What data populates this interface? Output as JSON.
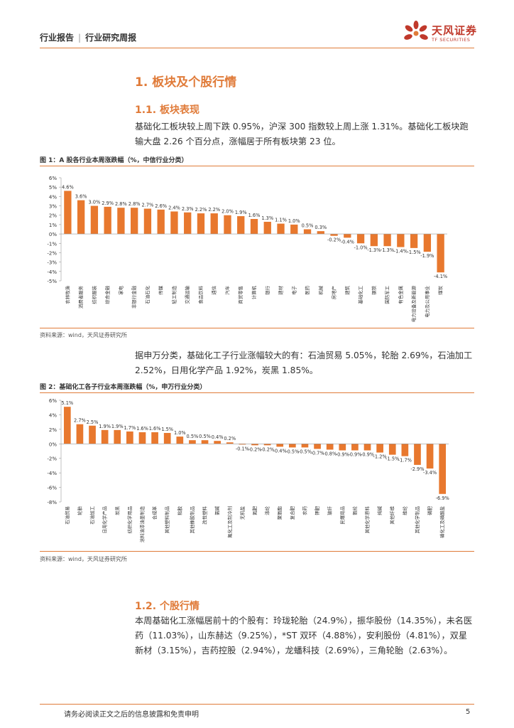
{
  "header": {
    "category": "行业报告",
    "subcategory": "行业研究周报"
  },
  "logo": {
    "name": "天风证券",
    "english": "TF SECURITIES"
  },
  "section1": {
    "title": "1. 板块及个股行情"
  },
  "section11": {
    "title": "1.1. 板块表现",
    "para": "基础化工板块较上周下跌 0.95%，沪深 300 指数较上周上涨 1.31%。基础化工板块跑输大盘 2.26 个百分点，涨幅居于所有板块第 23 位。"
  },
  "figure1": {
    "title": "图 1：A 股各行业本周涨跌幅（%，中信行业分类）",
    "source": "资料来源：wind，天风证券研究所"
  },
  "para2": "据申万分类，基础化工子行业涨幅较大的有：石油贸易 5.05%，轮胎 2.69%，石油加工 2.52%，日用化学产品 1.92%，炭黑 1.85%。",
  "figure2": {
    "title": "图 2：基础化工各子行业本周涨跌幅（%，申万行业分类）",
    "source": "资料来源：wind，天风证券研究所"
  },
  "section12": {
    "title": "1.2. 个股行情",
    "para": "本周基础化工涨幅居前十的个股有：玲珑轮胎（24.9%），振华股份（14.35%），未名医药（11.03%），山东赫达（9.25%），*ST 双环（4.88%），安利股份（4.81%），双星新材（3.15%），吉药控股（2.94%），龙蟠科技（2.69%），三角轮胎（2.63%）。"
  },
  "footer": {
    "disclaimer": "请务必阅读正文之后的信息披露和免责申明",
    "page": "5"
  },
  "chart_data": [
    {
      "type": "bar",
      "title": "图 1：A 股各行业本周涨跌幅（%，中信行业分类）",
      "ylim": [
        -5,
        6
      ],
      "yticks": [
        "-5%",
        "-4%",
        "-3%",
        "-2%",
        "-1%",
        "0%",
        "1%",
        "2%",
        "3%",
        "4%",
        "5%",
        "6%"
      ],
      "categories": [
        "农林牧渔",
        "消费者服务",
        "纺织服装",
        "综合金融",
        "家电",
        "非银行金融",
        "石油石化",
        "传媒",
        "轻工制造",
        "交通运输",
        "食品饮料",
        "通信",
        "汽车",
        "商贸零售",
        "计算机",
        "银行",
        "建材",
        "电子",
        "医药",
        "机械",
        "房地产",
        "建筑",
        "基础化工",
        "钢铁",
        "国防军工",
        "有色金属",
        "电力设备及新能源",
        "电力及公用事业",
        "煤炭"
      ],
      "values": [
        4.6,
        3.6,
        3.0,
        2.9,
        2.8,
        2.8,
        2.7,
        2.6,
        2.4,
        2.3,
        2.2,
        2.2,
        2.0,
        1.9,
        1.6,
        1.3,
        1.1,
        1.0,
        0.5,
        0.3,
        -0.2,
        -0.4,
        -1.0,
        -1.3,
        -1.3,
        -1.4,
        -1.5,
        -1.9,
        -4.1
      ],
      "labels": [
        "4.6%",
        "3.6%",
        "3.0%",
        "2.9%",
        "2.8%",
        "2.8%",
        "2.7%",
        "2.6%",
        "2.4%",
        "2.3%",
        "2.2%",
        "2.2%",
        "2.0%",
        "1.9%",
        "1.6%",
        "1.3%",
        "1.1%",
        "1.0%",
        "0.5%",
        "0.3%",
        "-0.2%",
        "-0.4%",
        "-1.0%",
        "-1.3%",
        "-1.3%",
        "-1.4%",
        "-1.5%",
        "-1.9%",
        "-4.1%"
      ],
      "color": "#e8782e"
    },
    {
      "type": "bar",
      "title": "图 2：基础化工各子行业本周涨跌幅（%，申万行业分类）",
      "ylim": [
        -8,
        6
      ],
      "yticks": [
        "-8%",
        "-6%",
        "-4%",
        "-2%",
        "0%",
        "2%",
        "4%",
        "6%"
      ],
      "categories": [
        "石油贸易",
        "轮胎",
        "石油加工",
        "日用化学产品",
        "炭黑",
        "纺织化学用品",
        "涂料油漆油墨制造",
        "合成革",
        "其他塑料制品",
        "粘胶",
        "其他橡胶制品",
        "改性塑料",
        "氯碱",
        "氟化工及制冷剂",
        "无机盐",
        "氮肥",
        "涤纶",
        "聚氨酯",
        "复合肥",
        "农药",
        "钾肥",
        "玻纤",
        "民爆用品",
        "氨纶",
        "其他化学原料",
        "纯碱",
        "其他纤维",
        "维纶",
        "其他化学制品",
        "磷肥",
        "磷化工及磷酸盐"
      ],
      "values": [
        5.1,
        2.7,
        2.5,
        1.9,
        1.9,
        1.7,
        1.6,
        1.6,
        1.5,
        1.0,
        0.5,
        0.5,
        0.4,
        0.2,
        -0.1,
        -0.2,
        -0.2,
        -0.4,
        -0.5,
        -0.5,
        -0.7,
        -0.8,
        -0.9,
        -0.9,
        -0.9,
        -1.2,
        -1.5,
        -1.7,
        -2.9,
        -3.4,
        -6.9
      ],
      "labels": [
        "5.1%",
        "2.7%",
        "2.5%",
        "1.9%",
        "1.9%",
        "1.7%",
        "1.6%",
        "1.6%",
        "1.5%",
        "1.0%",
        "0.5%",
        "0.5%",
        "0.4%",
        "0.2%",
        "-0.1%",
        "-0.2%",
        "-0.2%",
        "-0.4%",
        "-0.5%",
        "-0.5%",
        "-0.7%",
        "-0.8%",
        "-0.9%",
        "-0.9%",
        "-0.9%",
        "-1.2%",
        "-1.5%",
        "-1.7%",
        "-2.9%",
        "-3.4%",
        "-6.9%"
      ],
      "color": "#e8782e"
    }
  ]
}
